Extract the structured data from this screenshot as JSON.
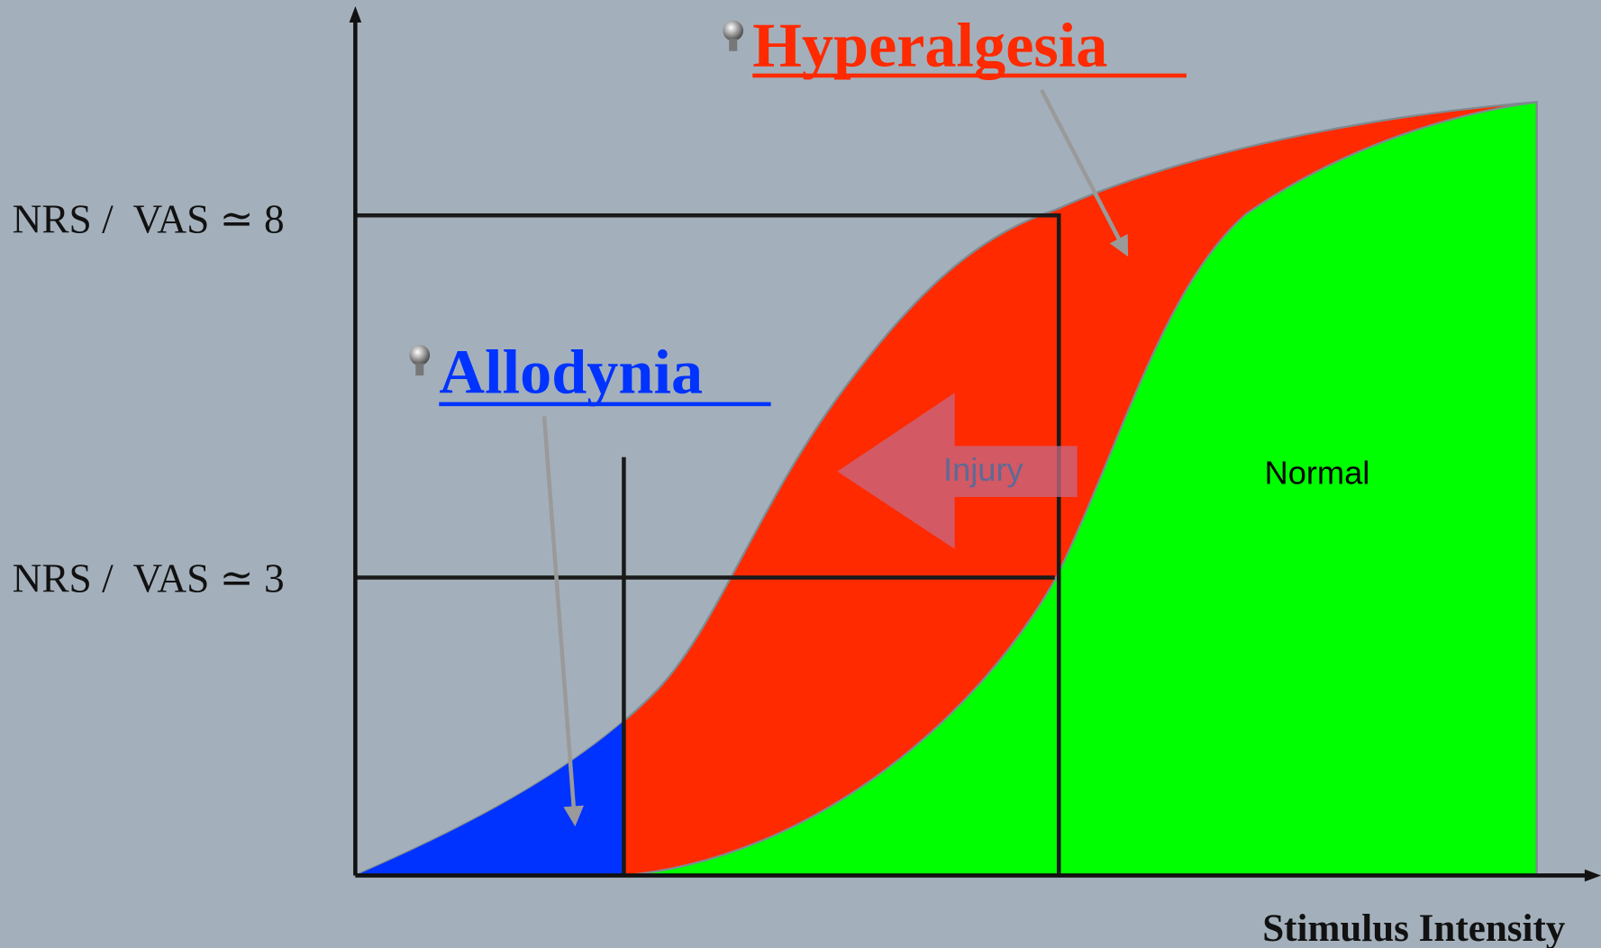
{
  "hyperalgesia": "Hyperalgesia",
  "allodynia": "Allodynia",
  "y_labels": [
    "NRS /  VAS ≃ 8",
    "NRS /  VAS ≃ 3"
  ],
  "injury": "Injury",
  "normal": "Normal",
  "x_axis_label": "Stimulus Intensity"
}
